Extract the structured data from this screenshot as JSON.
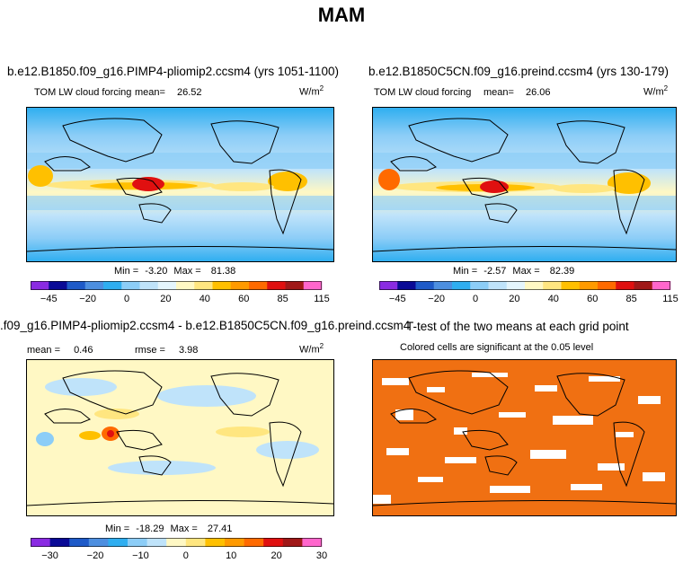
{
  "title": "MAM",
  "chart_data": [
    {
      "type": "heatmap",
      "panel": "top-left",
      "case_title": "b.e12.B1850.f09_g16.PIMP4-pliomip2.ccsm4 (yrs 1051-1100)",
      "variable": "TOM LW cloud forcing",
      "mean_label": "mean=",
      "mean": "26.52",
      "units_base": "W/m",
      "units_exp": "2",
      "min_label": "Min =",
      "min": "-3.20",
      "max_label": "Max =",
      "max": "81.38",
      "colorbar_ticks": [
        "-45",
        "-20",
        "0",
        "20",
        "40",
        "60",
        "85",
        "115"
      ]
    },
    {
      "type": "heatmap",
      "panel": "top-right",
      "case_title": "b.e12.B1850C5CN.f09_g16.preind.ccsm4 (yrs 130-179)",
      "variable": "TOM LW cloud forcing",
      "mean_label": "mean=",
      "mean": "26.06",
      "units_base": "W/m",
      "units_exp": "2",
      "min_label": "Min =",
      "min": "-2.57",
      "max_label": "Max =",
      "max": "82.39",
      "colorbar_ticks": [
        "-45",
        "-20",
        "0",
        "20",
        "40",
        "60",
        "85",
        "115"
      ]
    },
    {
      "type": "heatmap",
      "panel": "bottom-left",
      "case_title": ".f09_g16.PIMP4-pliomip2.ccsm4 - b.e12.B1850C5CN.f09_g16.preind.ccsm4",
      "mean_label": "mean =",
      "mean": "0.46",
      "rmse_label": "rmse =",
      "rmse": "3.98",
      "units_base": "W/m",
      "units_exp": "2",
      "min_label": "Min =",
      "min": "-18.29",
      "max_label": "Max =",
      "max": "27.41",
      "colorbar_ticks": [
        "-30",
        "-20",
        "-10",
        "0",
        "10",
        "20",
        "30"
      ]
    },
    {
      "type": "heatmap",
      "panel": "bottom-right",
      "case_title": "T-test of the two means at each grid point",
      "subtitle": "Colored cells are significant at the 0.05 level"
    }
  ],
  "colors": {
    "seq_palette": [
      "#8a2be2",
      "#0a0a96",
      "#1e5ac8",
      "#4d8fe0",
      "#2faef0",
      "#8ccdf7",
      "#bfe3fa",
      "#e4f5fc",
      "#fff8c4",
      "#ffe680",
      "#ffc000",
      "#ff9a00",
      "#ff6a00",
      "#e01010",
      "#a01818",
      "#ff66cc"
    ],
    "diff_palette": [
      "#8a2be2",
      "#0a0a96",
      "#1e5ac8",
      "#4d8fe0",
      "#2faef0",
      "#8ccdf7",
      "#bfe3fa",
      "#fff8c4",
      "#ffe680",
      "#ffc000",
      "#ff9a00",
      "#ff6a00",
      "#e01010",
      "#a01818",
      "#ff66cc"
    ],
    "significance": "#f07012"
  }
}
